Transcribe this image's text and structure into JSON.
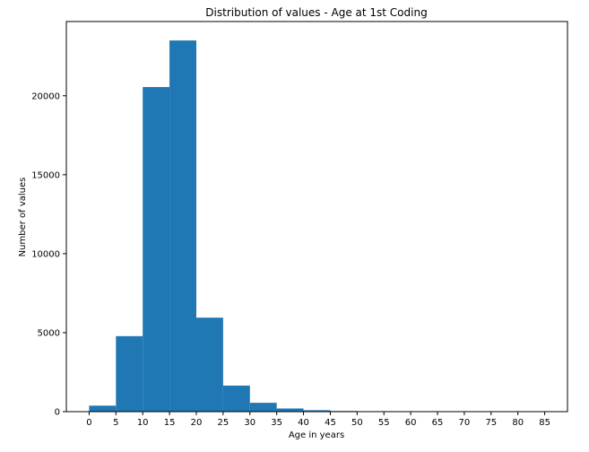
{
  "chart_data": {
    "type": "bar",
    "title": "Distribution of values - Age at 1st Coding",
    "xlabel": "Age in years",
    "ylabel": "Number of values",
    "bins": [
      {
        "start": 0,
        "end": 5,
        "value": 380
      },
      {
        "start": 5,
        "end": 10,
        "value": 4780
      },
      {
        "start": 10,
        "end": 15,
        "value": 20550
      },
      {
        "start": 15,
        "end": 20,
        "value": 23500
      },
      {
        "start": 20,
        "end": 25,
        "value": 5950
      },
      {
        "start": 25,
        "end": 30,
        "value": 1650
      },
      {
        "start": 30,
        "end": 35,
        "value": 560
      },
      {
        "start": 35,
        "end": 40,
        "value": 200
      },
      {
        "start": 40,
        "end": 45,
        "value": 90
      },
      {
        "start": 45,
        "end": 50,
        "value": 40
      },
      {
        "start": 50,
        "end": 55,
        "value": 20
      }
    ],
    "xlim": [
      -4.25,
      89.25
    ],
    "ylim": [
      0,
      24700
    ],
    "x_ticks": [
      "0",
      "5",
      "10",
      "15",
      "20",
      "25",
      "30",
      "35",
      "40",
      "45",
      "50",
      "55",
      "60",
      "65",
      "70",
      "75",
      "80",
      "85"
    ],
    "y_ticks": [
      "0",
      "5000",
      "10000",
      "15000",
      "20000"
    ],
    "grid": false,
    "legend": "none",
    "bar_color": "#1f77b4"
  }
}
